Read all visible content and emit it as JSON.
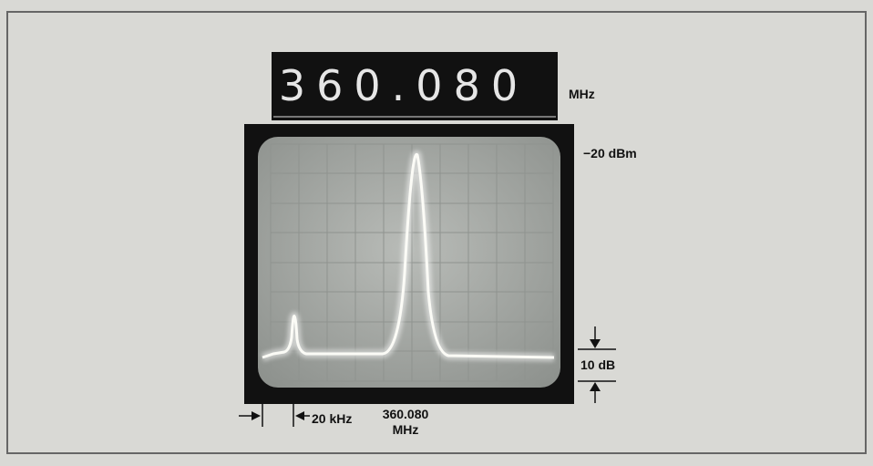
{
  "display": {
    "reading": "360.080",
    "unit": "MHz"
  },
  "annotations": {
    "reference_level": "−20 dBm",
    "scale": "10 dB",
    "span": "20 kHz",
    "center_frequency": "360.080",
    "center_unit": "MHz"
  }
}
